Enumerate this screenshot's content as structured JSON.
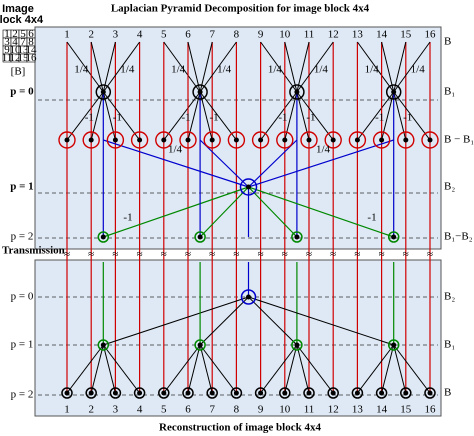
{
  "title": "Laplacian Pyramid Decomposition for image block 4x4",
  "image_block": {
    "label_line1": "Image",
    "label_line2": "block 4x4",
    "grid": [
      [
        1,
        2,
        5,
        6
      ],
      [
        3,
        4,
        7,
        8
      ],
      [
        9,
        10,
        13,
        14
      ],
      [
        11,
        12,
        15,
        16
      ]
    ],
    "caption": "[B]"
  },
  "columns": [
    1,
    2,
    3,
    4,
    5,
    6,
    7,
    8,
    9,
    10,
    11,
    12,
    13,
    14,
    15,
    16
  ],
  "decomposition": {
    "levels": [
      "p = 0",
      "p = 1",
      "p = 2"
    ],
    "right_labels": [
      "B",
      "B₁",
      "B − B₁",
      "B₂",
      "B₁−B₂"
    ]
  },
  "weights": {
    "quarter": "1/4",
    "minus": "-1"
  },
  "transmission": "Transmission",
  "reconstruction": {
    "levels": [
      "p = 0",
      "p = 1",
      "p = 2"
    ],
    "right_labels": [
      "B₂",
      "B₁",
      "B"
    ]
  },
  "caption": "Reconstruction of image block 4x4"
}
